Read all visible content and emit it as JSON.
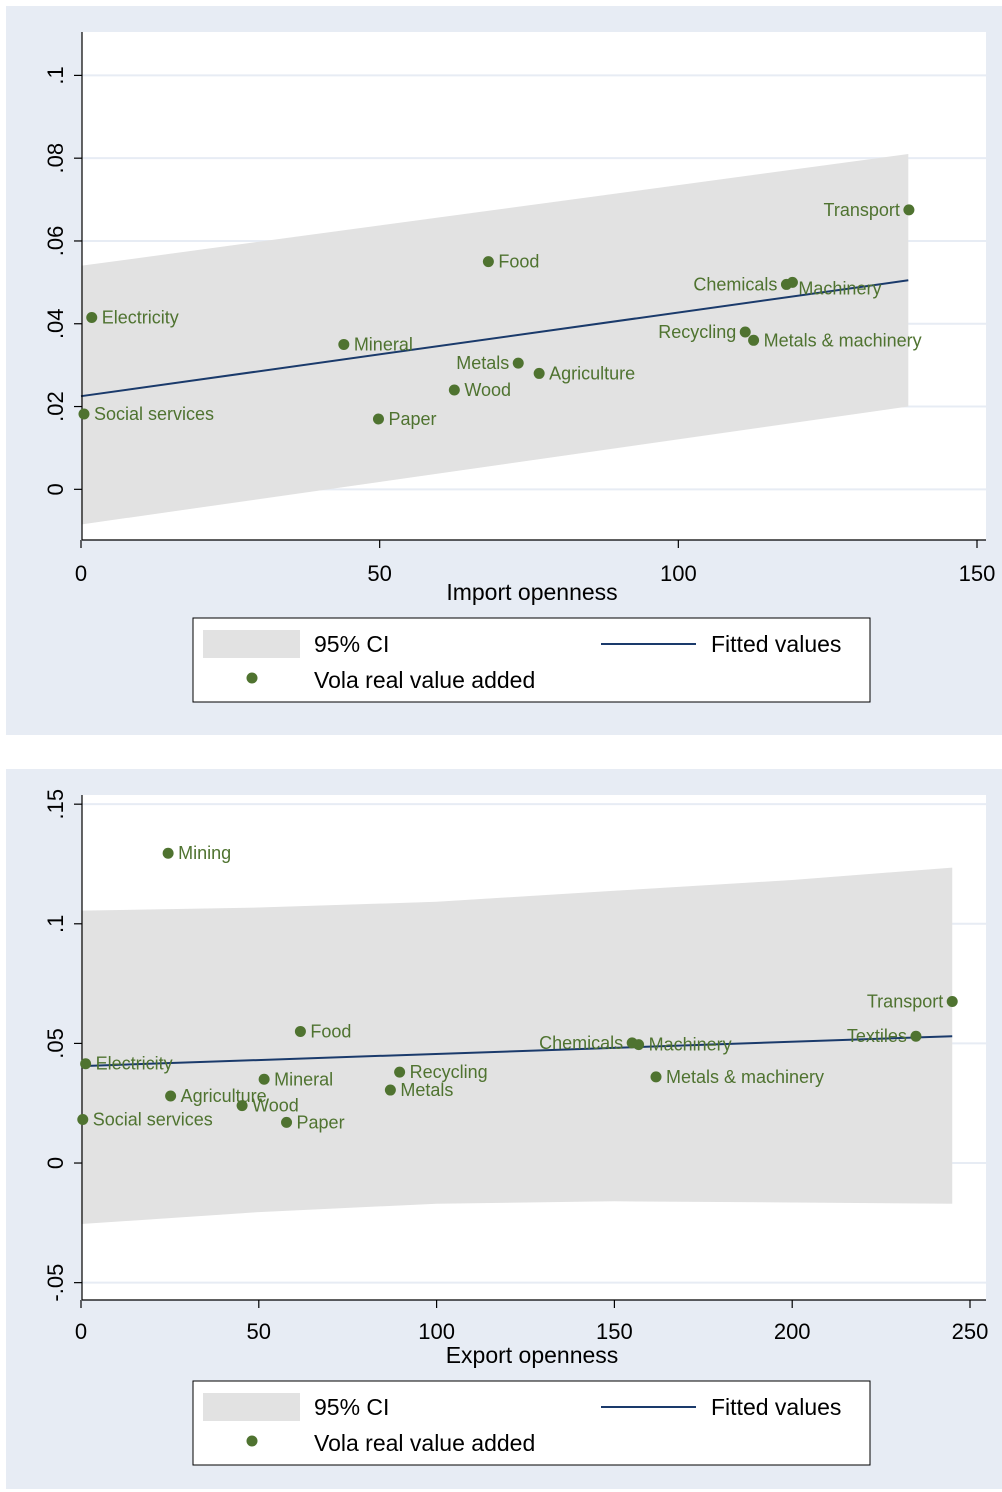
{
  "charts": [
    {
      "type": "scatter",
      "xlabel": "Import openness",
      "ylabel": "",
      "xlim": [
        0,
        150
      ],
      "ylim": [
        -0.012,
        0.11
      ],
      "x_ticks": [
        0,
        50,
        100,
        150
      ],
      "x_tick_labels": [
        "0",
        "50",
        "100",
        "150"
      ],
      "y_ticks": [
        0,
        0.02,
        0.04,
        0.06,
        0.08,
        0.1
      ],
      "y_tick_labels": [
        "0",
        ".02",
        ".04",
        ".06",
        ".08",
        ".1"
      ],
      "grid": true,
      "ci": {
        "x": [
          0,
          138.5
        ],
        "upper": [
          0.054,
          0.081
        ],
        "lower": [
          -0.0085,
          0.02
        ]
      },
      "fitted": {
        "x": [
          0,
          138.5
        ],
        "y": [
          0.0225,
          0.0505
        ]
      },
      "points": [
        {
          "label": "Electricity",
          "x": 1.8,
          "y": 0.0415,
          "pos": "right"
        },
        {
          "label": "Social services",
          "x": 0.5,
          "y": 0.0182,
          "pos": "right"
        },
        {
          "label": "Mineral",
          "x": 44,
          "y": 0.035,
          "pos": "right"
        },
        {
          "label": "Paper",
          "x": 49.8,
          "y": 0.017,
          "pos": "right"
        },
        {
          "label": "Wood",
          "x": 62.5,
          "y": 0.024,
          "pos": "right"
        },
        {
          "label": "Food",
          "x": 68.2,
          "y": 0.055,
          "pos": "right"
        },
        {
          "label": "Metals",
          "x": 73.2,
          "y": 0.0305,
          "pos": "left"
        },
        {
          "label": "Agriculture",
          "x": 76.7,
          "y": 0.028,
          "pos": "right"
        },
        {
          "label": "Recycling",
          "x": 111.2,
          "y": 0.038,
          "pos": "left"
        },
        {
          "label": "Metals & machinery",
          "x": 112.6,
          "y": 0.036,
          "pos": "right"
        },
        {
          "label": "Chemicals",
          "x": 118.1,
          "y": 0.0495,
          "pos": "left"
        },
        {
          "label": "Machinery",
          "x": 119.1,
          "y": 0.05,
          "pos": "right-below"
        },
        {
          "label": "Transport",
          "x": 138.6,
          "y": 0.0675,
          "pos": "left"
        }
      ],
      "legend": {
        "ci": "95% CI",
        "fitted": "Fitted values",
        "scatter": "Vola real value added"
      }
    },
    {
      "type": "scatter",
      "xlabel": "Export openness",
      "ylabel": "",
      "xlim": [
        0,
        250
      ],
      "ylim": [
        -0.056,
        0.153
      ],
      "x_ticks": [
        0,
        50,
        100,
        150,
        200,
        250
      ],
      "x_tick_labels": [
        "0",
        "50",
        "100",
        "150",
        "200",
        "250"
      ],
      "y_ticks": [
        -0.05,
        0,
        0.05,
        0.1,
        0.15
      ],
      "y_tick_labels": [
        "-.05",
        "0",
        ".05",
        ".1",
        ".15"
      ],
      "grid": true,
      "ci": {
        "x": [
          0,
          50,
          100,
          150,
          200,
          245
        ],
        "upper": [
          0.1055,
          0.1068,
          0.1092,
          0.1138,
          0.1183,
          0.1235
        ],
        "lower": [
          -0.0255,
          -0.0205,
          -0.017,
          -0.016,
          -0.0165,
          -0.017
        ]
      },
      "fitted": {
        "x": [
          0,
          245
        ],
        "y": [
          0.0405,
          0.053
        ]
      },
      "points": [
        {
          "label": "Mining",
          "x": 24.5,
          "y": 0.1295,
          "pos": "right"
        },
        {
          "label": "Electricity",
          "x": 1.3,
          "y": 0.0415,
          "pos": "right"
        },
        {
          "label": "Social services",
          "x": 0.5,
          "y": 0.0182,
          "pos": "right"
        },
        {
          "label": "Agriculture",
          "x": 25.2,
          "y": 0.028,
          "pos": "right"
        },
        {
          "label": "Wood",
          "x": 45.3,
          "y": 0.024,
          "pos": "right"
        },
        {
          "label": "Mineral",
          "x": 51.5,
          "y": 0.035,
          "pos": "right"
        },
        {
          "label": "Paper",
          "x": 57.8,
          "y": 0.017,
          "pos": "right"
        },
        {
          "label": "Food",
          "x": 61.7,
          "y": 0.055,
          "pos": "right"
        },
        {
          "label": "Metals",
          "x": 87,
          "y": 0.0305,
          "pos": "right"
        },
        {
          "label": "Recycling",
          "x": 89.6,
          "y": 0.038,
          "pos": "right"
        },
        {
          "label": "Chemicals",
          "x": 155,
          "y": 0.0502,
          "pos": "left"
        },
        {
          "label": "Machinery",
          "x": 156.8,
          "y": 0.0495,
          "pos": "right"
        },
        {
          "label": "Metals & machinery",
          "x": 161.7,
          "y": 0.036,
          "pos": "right"
        },
        {
          "label": "Textiles",
          "x": 234.8,
          "y": 0.053,
          "pos": "left"
        },
        {
          "label": "Transport",
          "x": 245,
          "y": 0.0675,
          "pos": "left"
        }
      ],
      "legend": {
        "ci": "95% CI",
        "fitted": "Fitted values",
        "scatter": "Vola real value added"
      }
    }
  ],
  "colors": {
    "background": "#e7ecf4",
    "plot_bg": "#ffffff",
    "grid": "#e7ecf4",
    "ci_fill": "#e2e2e2",
    "fitted_line": "#1a3a6b",
    "marker": "#4f7330",
    "label": "#4f7330"
  }
}
